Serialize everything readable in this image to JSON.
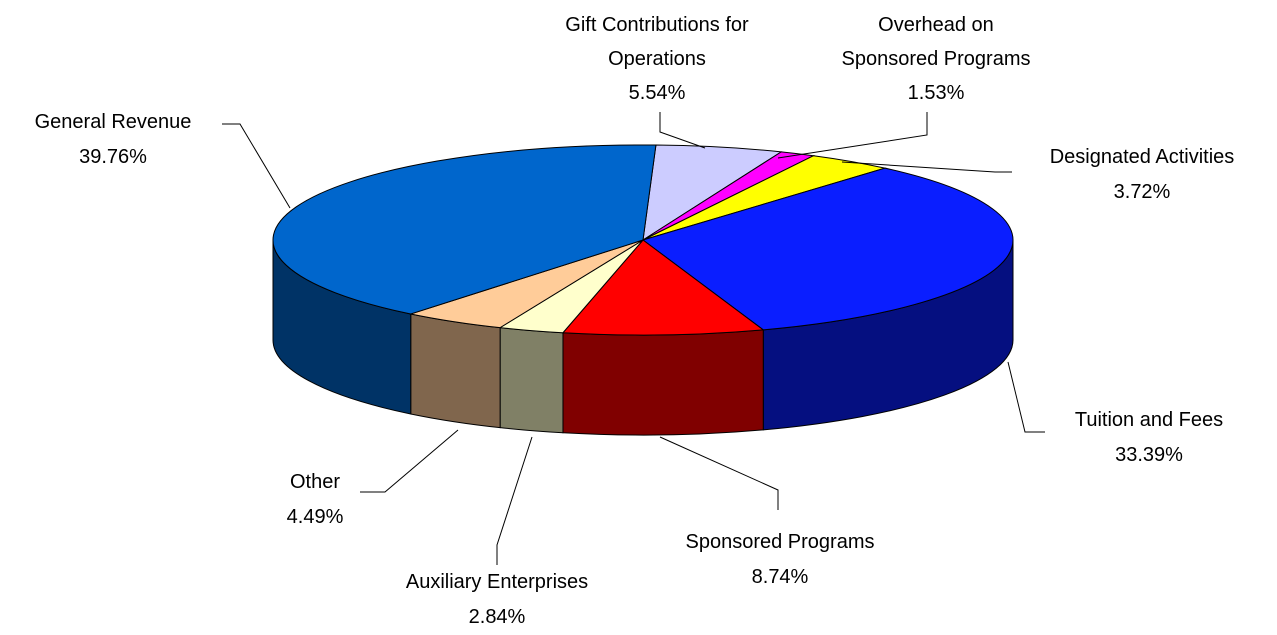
{
  "chart_data": {
    "type": "pie3d",
    "categories": [
      "Gift Contributions for Operations",
      "Overhead on Sponsored Programs",
      "Designated Activities",
      "Tuition and Fees",
      "Sponsored Programs",
      "Auxiliary Enterprises",
      "Other",
      "General Revenue"
    ],
    "values": [
      5.54,
      1.53,
      3.72,
      33.39,
      8.74,
      2.84,
      4.49,
      39.76
    ],
    "value_labels": [
      "5.54%",
      "1.53%",
      "3.72%",
      "33.39%",
      "8.74%",
      "2.84%",
      "4.49%",
      "39.76%"
    ],
    "colors": [
      "#ccccff",
      "#ff00ff",
      "#ffff00",
      "#0a1eff",
      "#ff0000",
      "#ffffcc",
      "#ffcc99",
      "#0066cc"
    ]
  }
}
